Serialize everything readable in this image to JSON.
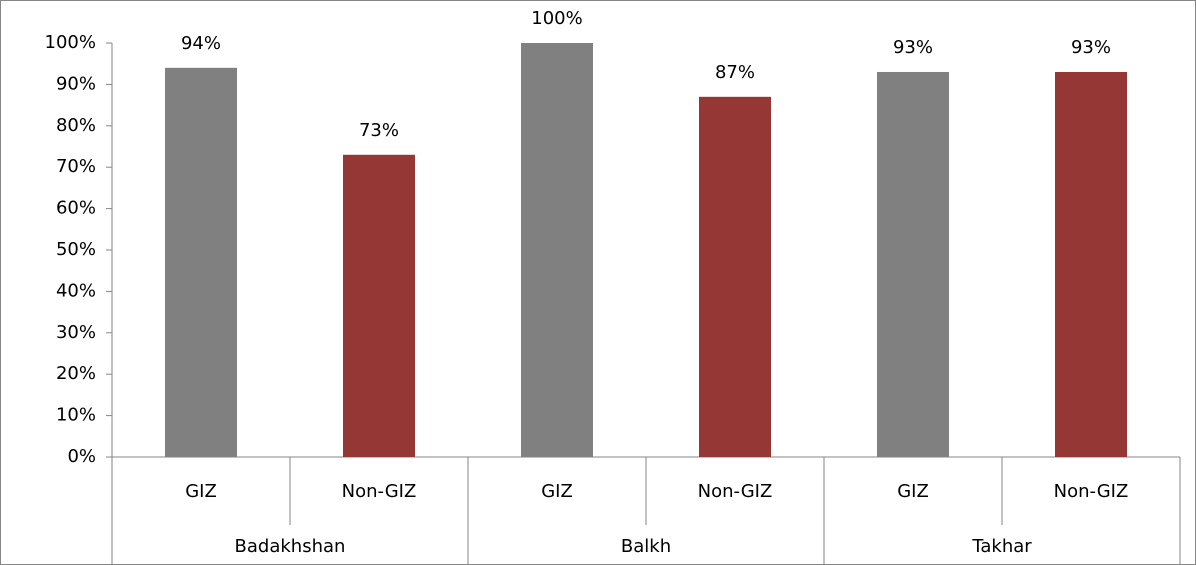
{
  "chart_data": {
    "type": "bar",
    "groups": [
      {
        "name": "Badakhshan",
        "categories": [
          "GIZ",
          "Non-GIZ"
        ],
        "values": [
          94,
          73
        ],
        "value_labels": [
          "94%",
          "73%"
        ],
        "colors": [
          "#808080",
          "#953735"
        ]
      },
      {
        "name": "Balkh",
        "categories": [
          "GIZ",
          "Non-GIZ"
        ],
        "values": [
          100,
          87
        ],
        "value_labels": [
          "100%",
          "87%"
        ],
        "colors": [
          "#808080",
          "#953735"
        ]
      },
      {
        "name": "Takhar",
        "categories": [
          "GIZ",
          "Non-GIZ"
        ],
        "values": [
          93,
          93
        ],
        "value_labels": [
          "93%",
          "93%"
        ],
        "colors": [
          "#808080",
          "#953735"
        ]
      }
    ],
    "ylim": [
      0,
      100
    ],
    "yticks": [
      {
        "value": 0,
        "label": "0%"
      },
      {
        "value": 10,
        "label": "10%"
      },
      {
        "value": 20,
        "label": "20%"
      },
      {
        "value": 30,
        "label": "30%"
      },
      {
        "value": 40,
        "label": "40%"
      },
      {
        "value": 50,
        "label": "50%"
      },
      {
        "value": 60,
        "label": "60%"
      },
      {
        "value": 70,
        "label": "70%"
      },
      {
        "value": 80,
        "label": "80%"
      },
      {
        "value": 90,
        "label": "90%"
      },
      {
        "value": 100,
        "label": "100%"
      }
    ],
    "grid": false
  }
}
